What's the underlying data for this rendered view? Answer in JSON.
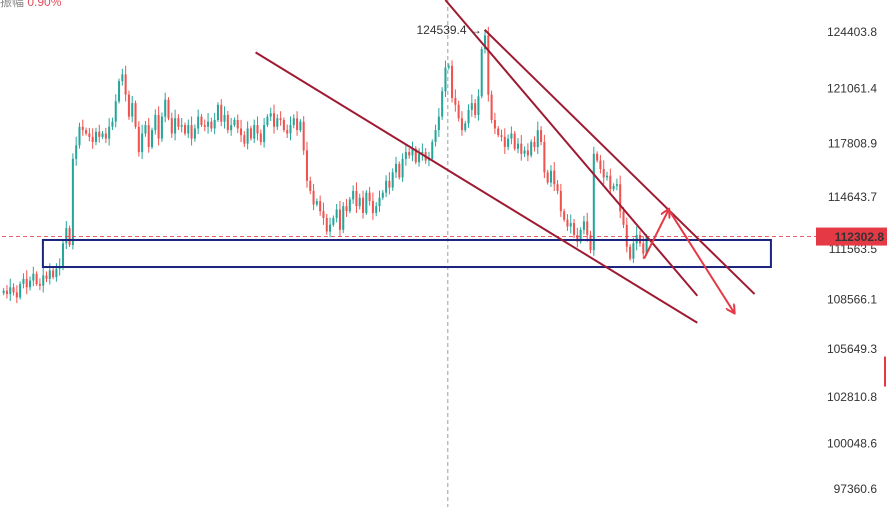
{
  "header": {
    "label": "振幅",
    "value": "0.90%"
  },
  "chart_data": {
    "type": "candlestick",
    "title": "",
    "xlabel": "",
    "ylabel": "",
    "y_ticks": [
      "124403.8",
      "121061.4",
      "117808.9",
      "114643.7",
      "111563.5",
      "108566.1",
      "105649.3",
      "102810.8",
      "100048.6",
      "97360.6"
    ],
    "ylim": [
      96300,
      126300
    ],
    "grid": false,
    "colors": {
      "up": "#26a69a",
      "down": "#ef5350",
      "trend": "#9e1b32",
      "zone": "#1a237e",
      "forecast": "#e53945",
      "crosshair": "#9e9e9e",
      "price_tag": "#e53945"
    },
    "current_price": {
      "value": 112302.8,
      "label": "112302.8"
    },
    "high_marker": {
      "value": 124539.4,
      "label": "124539.4"
    },
    "support_zone": [
      110500,
      112100
    ],
    "upper_trendline": [
      [
        0.542,
        126300
      ],
      [
        0.85,
        108800
      ]
    ],
    "lower_trendline": [
      [
        0.31,
        123200
      ],
      [
        0.85,
        107200
      ]
    ],
    "forecast_path": [
      111000,
      113900,
      107800
    ],
    "closes": [
      109100,
      108900,
      109300,
      109000,
      108700,
      109500,
      109800,
      109300,
      109700,
      110100,
      109500,
      109400,
      110000,
      109800,
      110300,
      109900,
      110400,
      110500,
      111900,
      112800,
      111800,
      116900,
      117700,
      118800,
      118600,
      118400,
      118200,
      117900,
      118500,
      118200,
      118400,
      118100,
      118800,
      119100,
      120300,
      121500,
      121900,
      120700,
      119400,
      120200,
      118800,
      117300,
      118400,
      118900,
      117600,
      118600,
      119500,
      118100,
      119400,
      120400,
      119300,
      118400,
      119300,
      118800,
      118900,
      118400,
      118900,
      118100,
      118700,
      119400,
      118900,
      118800,
      119100,
      118700,
      119200,
      120100,
      119100,
      119500,
      118600,
      118900,
      119200,
      118700,
      118300,
      117800,
      118700,
      118100,
      118900,
      118400,
      117900,
      118900,
      119400,
      119600,
      118800,
      119300,
      119200,
      118600,
      118400,
      118900,
      119300,
      118600,
      119100,
      117400,
      115600,
      115000,
      114200,
      114400,
      113800,
      113400,
      112600,
      113000,
      113400,
      113900,
      112700,
      114100,
      113800,
      114500,
      115000,
      114100,
      114600,
      113700,
      114900,
      114400,
      113700,
      114100,
      114600,
      114900,
      115600,
      115200,
      116100,
      116600,
      115800,
      116900,
      117300,
      117100,
      117500,
      116700,
      117200,
      117300,
      116800,
      116900,
      117900,
      118600,
      119400,
      120900,
      122300,
      122400,
      120500,
      120100,
      119300,
      118600,
      119000,
      119800,
      120200,
      119500,
      120600,
      123400,
      124200,
      120700,
      119200,
      118700,
      118300,
      118200,
      117600,
      118100,
      118400,
      117500,
      117800,
      117200,
      117400,
      117100,
      117900,
      117600,
      118600,
      117900,
      116100,
      115500,
      116200,
      115400,
      115000,
      113800,
      113300,
      112900,
      113100,
      112400,
      112000,
      112700,
      113200,
      112400,
      111500,
      117200,
      116800,
      116300,
      115800,
      115900,
      115100,
      115300,
      115400,
      113800,
      113000,
      111700,
      111000,
      111900,
      112400,
      111900,
      111300,
      112300
    ]
  }
}
